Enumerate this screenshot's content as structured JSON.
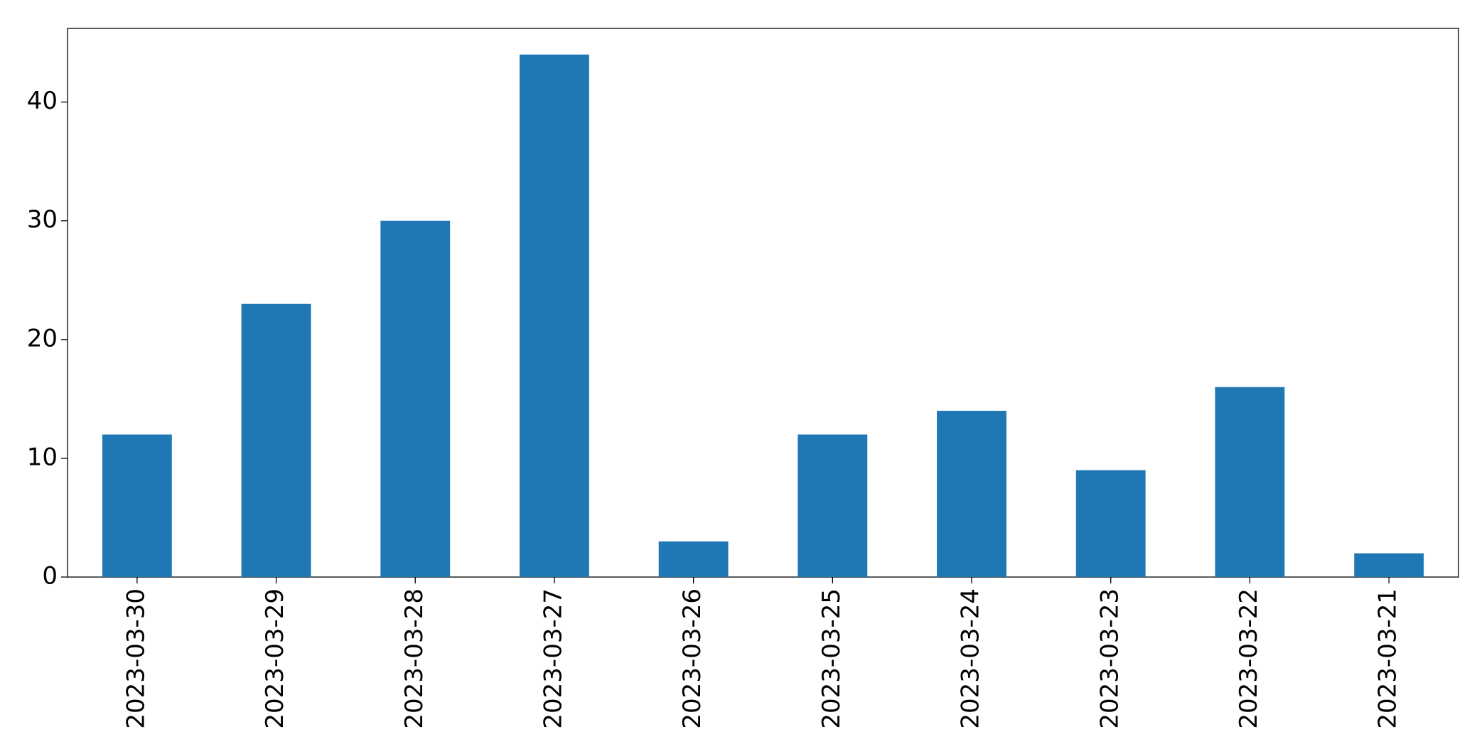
{
  "chart_data": {
    "type": "bar",
    "categories": [
      "2023-03-30",
      "2023-03-29",
      "2023-03-28",
      "2023-03-27",
      "2023-03-26",
      "2023-03-25",
      "2023-03-24",
      "2023-03-23",
      "2023-03-22",
      "2023-03-21"
    ],
    "values": [
      12,
      23,
      30,
      44,
      3,
      12,
      14,
      9,
      16,
      2
    ],
    "color": "#1f77b4",
    "ylim": [
      0,
      46.2
    ],
    "yticks": [
      0,
      10,
      20,
      30,
      40
    ],
    "grid": false
  }
}
